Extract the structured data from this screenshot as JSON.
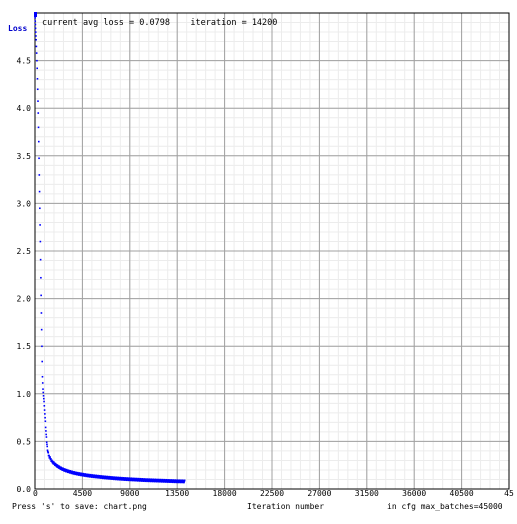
{
  "chart_data": {
    "type": "line",
    "title": "current avg loss = 0.0798    iteration = 14200",
    "ylabel": "Loss",
    "xlabel": "Iteration number",
    "xlim": [
      0,
      45000
    ],
    "ylim": [
      0,
      5
    ],
    "x_ticks": [
      "0",
      "4500",
      "9000",
      "13500",
      "18000",
      "22500",
      "27000",
      "31500",
      "36000",
      "40500",
      "45"
    ],
    "y_ticks": [
      "0.0",
      "0.5",
      "1.0",
      "1.5",
      "2.0",
      "2.5",
      "3.0",
      "3.5",
      "4.0",
      "4.5"
    ],
    "grid": true,
    "series_color": "#0000ff",
    "series": [
      {
        "x": [
          0,
          30,
          60,
          100,
          150,
          200,
          250,
          300,
          350,
          400,
          450,
          500,
          550,
          600,
          650,
          700,
          750,
          800,
          850,
          900,
          950,
          1000,
          1050,
          1100,
          1150,
          1200,
          1250,
          1300,
          1350,
          1400,
          1500,
          1600,
          1800,
          2000,
          2200,
          2500,
          2800,
          3200,
          3600,
          4000,
          4500,
          5000,
          5500,
          6000,
          6500,
          7000,
          7500,
          8000,
          8500,
          9000,
          9500,
          10000,
          10500,
          11000,
          11500,
          12000,
          12500,
          13000,
          13500,
          14000,
          14200
        ],
        "y": [
          4.95,
          4.88,
          4.8,
          4.72,
          4.58,
          4.42,
          4.2,
          3.95,
          3.65,
          3.3,
          2.95,
          2.6,
          2.22,
          1.85,
          1.5,
          1.18,
          1.05,
          0.98,
          0.92,
          0.83,
          0.75,
          0.66,
          0.57,
          0.5,
          0.44,
          0.4,
          0.37,
          0.35,
          0.34,
          0.33,
          0.31,
          0.29,
          0.27,
          0.25,
          0.235,
          0.215,
          0.2,
          0.185,
          0.172,
          0.162,
          0.152,
          0.143,
          0.136,
          0.13,
          0.124,
          0.119,
          0.114,
          0.11,
          0.106,
          0.103,
          0.1,
          0.097,
          0.094,
          0.092,
          0.09,
          0.088,
          0.086,
          0.084,
          0.082,
          0.081,
          0.08
        ]
      }
    ],
    "marker_y": 5.0
  },
  "footer": {
    "save_hint": "Press 's' to save: chart.png",
    "xlabel": "Iteration number",
    "max_batches": "in cfg max_batches=45000"
  }
}
